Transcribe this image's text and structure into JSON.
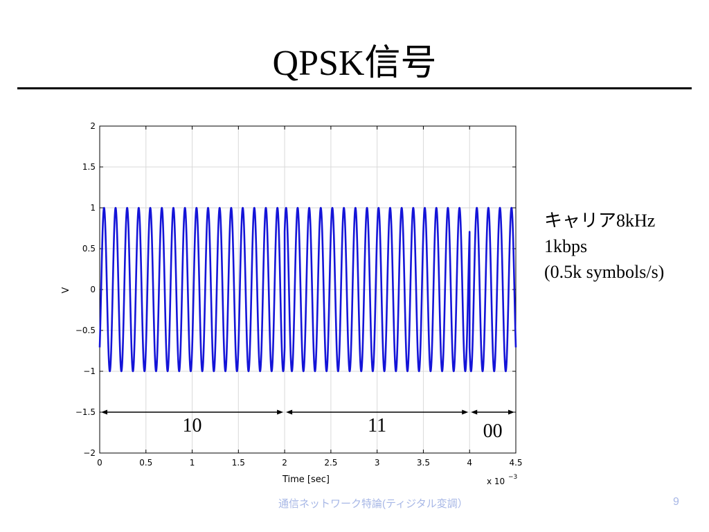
{
  "slide": {
    "title": "QPSK信号",
    "notes": [
      "キャリア8kHz",
      "1kbps",
      "(0.5k symbols/s)"
    ],
    "footer": "通信ネットワーク特論(ティジタル変調）",
    "page_number": "9"
  },
  "colors": {
    "signal": "#1414d8",
    "grid": "#d9d9d9",
    "footer": "#a7b7e6"
  },
  "chart_data": {
    "type": "line",
    "xlabel": "Time [sec]",
    "ylabel": "V",
    "x_multiplier": "x 10",
    "x_exponent": "−3",
    "xlim": [
      0,
      4.5
    ],
    "ylim": [
      -2,
      2
    ],
    "x_ticks": [
      0,
      0.5,
      1,
      1.5,
      2,
      2.5,
      3,
      3.5,
      4,
      4.5
    ],
    "x_tick_labels": [
      "0",
      "0.5",
      "1",
      "1.5",
      "2",
      "2.5",
      "3",
      "3.5",
      "4",
      "4.5"
    ],
    "y_ticks": [
      -2,
      -1.5,
      -1,
      -0.5,
      0,
      0.5,
      1,
      1.5,
      2
    ],
    "y_tick_labels": [
      "−2",
      "−1.5",
      "−1",
      "−0.5",
      "0",
      "0.5",
      "1",
      "1.5",
      "2"
    ],
    "grid": true,
    "carrier_cycles_per_x_unit": 8,
    "series": [
      {
        "segments": [
          {
            "x_start": 0,
            "x_end": 2,
            "amplitude": 1,
            "phase_deg": 225
          },
          {
            "x_start": 2,
            "x_end": 4,
            "amplitude": 1,
            "phase_deg": 315
          },
          {
            "x_start": 4,
            "x_end": 4.5,
            "amplitude": 1,
            "phase_deg": 135
          }
        ]
      }
    ],
    "annotations": [
      {
        "label": "10",
        "x_start": 0,
        "x_end": 2,
        "y": -1.5
      },
      {
        "label": "11",
        "x_start": 2,
        "x_end": 4,
        "y": -1.5
      },
      {
        "label": "00",
        "x_start": 4,
        "x_end": 4.5,
        "y": -1.5
      }
    ]
  }
}
